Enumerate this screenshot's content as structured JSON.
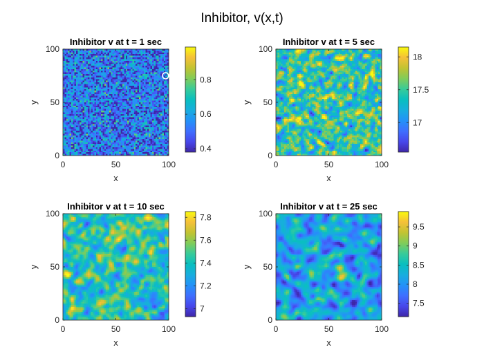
{
  "figure": {
    "suptitle": "Inhibitor, v(x,t)"
  },
  "chart_data": [
    {
      "type": "heatmap",
      "title": "Inhibitor v at t = 1 sec",
      "xlabel": "x",
      "ylabel": "y",
      "xlim": [
        0,
        100
      ],
      "ylim": [
        0,
        100
      ],
      "xticks": [
        "0",
        "50",
        "100"
      ],
      "yticks": [
        "0",
        "50",
        "100"
      ],
      "clim": [
        0.38,
        0.99
      ],
      "colorbar_ticks": [
        0.4,
        0.6,
        0.8
      ],
      "colorbar_tick_labels": [
        "0.4",
        "0.6",
        "0.8"
      ],
      "field_mean": 0.52,
      "field_spread": 0.12,
      "texture": "fine",
      "colormap": "parula",
      "marker": {
        "type": "circle",
        "x": 97,
        "y": 75
      }
    },
    {
      "type": "heatmap",
      "title": "Inhibitor v at t = 5 sec",
      "xlabel": "x",
      "ylabel": "y",
      "xlim": [
        0,
        100
      ],
      "ylim": [
        0,
        100
      ],
      "xticks": [
        "0",
        "50",
        "100"
      ],
      "yticks": [
        "0",
        "50",
        "100"
      ],
      "clim": [
        16.55,
        18.15
      ],
      "colorbar_ticks": [
        17,
        17.5,
        18
      ],
      "colorbar_tick_labels": [
        "17",
        "17.5",
        "18"
      ],
      "field_mean": 17.45,
      "field_spread": 0.28,
      "texture": "medium",
      "colormap": "parula"
    },
    {
      "type": "heatmap",
      "title": "Inhibitor v at t = 10 sec",
      "xlabel": "x",
      "ylabel": "y",
      "xlim": [
        0,
        100
      ],
      "ylim": [
        0,
        100
      ],
      "xticks": [
        "0",
        "50",
        "100"
      ],
      "yticks": [
        "0",
        "50",
        "100"
      ],
      "clim": [
        6.93,
        7.85
      ],
      "colorbar_ticks": [
        7,
        7.2,
        7.4,
        7.6,
        7.8
      ],
      "colorbar_tick_labels": [
        "7",
        "7.2",
        "7.4",
        "7.6",
        "7.8"
      ],
      "field_mean": 7.42,
      "field_spread": 0.14,
      "texture": "smooth",
      "colormap": "parula"
    },
    {
      "type": "heatmap",
      "title": "Inhibitor v at t = 25 sec",
      "xlabel": "x",
      "ylabel": "y",
      "xlim": [
        0,
        100
      ],
      "ylim": [
        0,
        100
      ],
      "xticks": [
        "0",
        "50",
        "100"
      ],
      "yticks": [
        "0",
        "50",
        "100"
      ],
      "clim": [
        7.15,
        9.9
      ],
      "colorbar_ticks": [
        7.5,
        8,
        8.5,
        9,
        9.5
      ],
      "colorbar_tick_labels": [
        "7.5",
        "8",
        "8.5",
        "9",
        "9.5"
      ],
      "field_mean": 8.15,
      "field_spread": 0.4,
      "texture": "blobs",
      "colormap": "parula"
    }
  ]
}
